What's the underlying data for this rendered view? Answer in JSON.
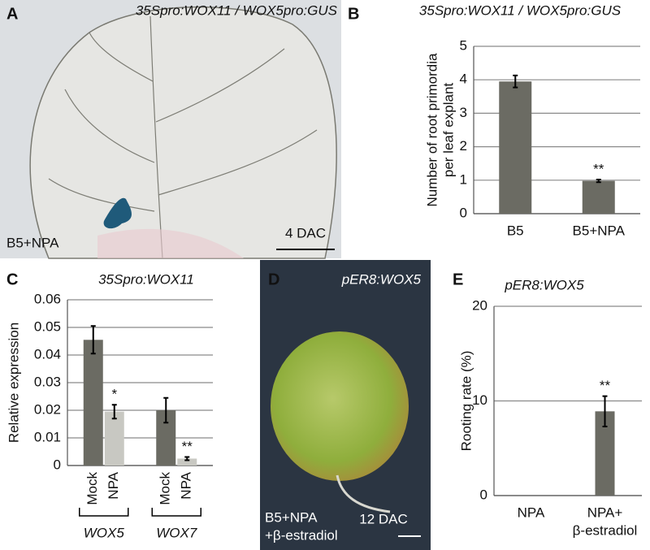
{
  "chart_data": [
    {
      "type": "bar",
      "panel": "B",
      "title": "35Spro:WOX11 / WOX5pro:GUS",
      "ylabel": [
        "Number of root primordia",
        "per leaf explant"
      ],
      "categories": [
        "B5",
        "B5+NPA"
      ],
      "values": [
        3.95,
        0.98
      ],
      "errors": [
        0.18,
        0.04
      ],
      "value_annotations": [
        null,
        "**"
      ],
      "color": "#6b6b63",
      "ylim": [
        0,
        5
      ],
      "yticks": [
        0,
        1,
        2,
        3,
        4,
        5
      ],
      "grid": true
    },
    {
      "type": "grouped-bar",
      "panel": "C",
      "title": "35Spro:WOX11",
      "ylabel": [
        "Relative expression"
      ],
      "categories": [
        "WOX5",
        "WOX7"
      ],
      "series": [
        {
          "name": "Mock",
          "color": "#6b6b63",
          "values": [
            0.0455,
            0.02
          ],
          "errors": [
            0.005,
            0.0045
          ],
          "value_annotations": [
            null,
            null
          ]
        },
        {
          "name": "NPA",
          "color": "#c8c8c2",
          "values": [
            0.0195,
            0.0025
          ],
          "errors": [
            0.0025,
            0.0006
          ],
          "value_annotations": [
            "*",
            "**"
          ]
        }
      ],
      "ylim": [
        0,
        0.06
      ],
      "yticks": [
        0,
        0.01,
        0.02,
        0.03,
        0.04,
        0.05,
        0.06
      ],
      "grid": true
    },
    {
      "type": "bar",
      "panel": "E",
      "title": "pER8:WOX5",
      "ylabel": [
        "Rooting rate (%)"
      ],
      "categories": [
        "NPA",
        [
          "NPA+",
          "β-estradiol"
        ]
      ],
      "values": [
        0,
        8.9
      ],
      "errors": [
        null,
        1.6
      ],
      "value_annotations": [
        null,
        "**"
      ],
      "color": "#6b6b63",
      "ylim": [
        0,
        20
      ],
      "yticks": [
        0,
        10,
        20
      ],
      "grid": true
    }
  ],
  "images": [
    {
      "panel": "A",
      "title": "35Spro:WOX11 / WOX5pro:GUS",
      "label": [
        "B5+NPA"
      ],
      "scale": "4 DAC"
    },
    {
      "panel": "D",
      "title": "pER8:WOX5",
      "label": [
        "B5+NPA",
        "+β-estradiol"
      ],
      "scale": "12 DAC"
    }
  ]
}
